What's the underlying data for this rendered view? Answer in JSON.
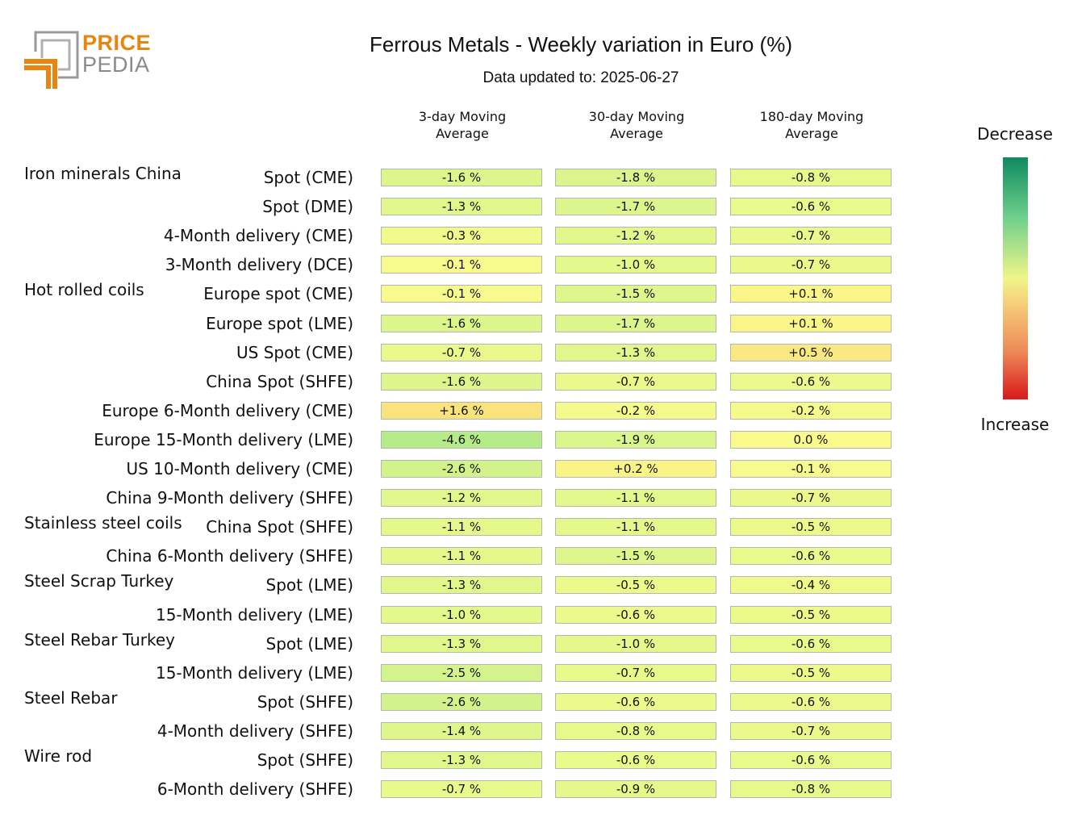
{
  "header": {
    "logo_price": "PRICE",
    "logo_pedia": "PEDIA",
    "logo_colors": {
      "orange": "#e8850f",
      "gray": "#8a8a8a",
      "text_orange": "#e8850f",
      "text_gray": "#8a8a8a"
    }
  },
  "chart_data": {
    "type": "table",
    "title": "Ferrous Metals - Weekly variation in Euro (%)",
    "subtitle": "Data updated to: 2025-06-27",
    "columns": [
      "3-day Moving\nAverage",
      "30-day Moving\nAverage",
      "180-day Moving\nAverage"
    ],
    "column_lines": [
      [
        "3-day Moving",
        "Average"
      ],
      [
        "30-day Moving",
        "Average"
      ],
      [
        "180-day Moving",
        "Average"
      ]
    ],
    "groups": [
      {
        "name": "Iron minerals China",
        "start_row": 0
      },
      {
        "name": "Hot rolled coils",
        "start_row": 4
      },
      {
        "name": "Stainless steel coils",
        "start_row": 12
      },
      {
        "name": "Steel Scrap Turkey",
        "start_row": 14
      },
      {
        "name": "Steel Rebar Turkey",
        "start_row": 16
      },
      {
        "name": "Steel Rebar",
        "start_row": 18
      },
      {
        "name": "Wire rod",
        "start_row": 20
      }
    ],
    "rows": [
      {
        "label": "Spot (CME)",
        "values": [
          -1.6,
          -1.8,
          -0.8
        ],
        "texts": [
          "-1.6 %",
          "-1.8 %",
          "-0.8 %"
        ]
      },
      {
        "label": "Spot (DME)",
        "values": [
          -1.3,
          -1.7,
          -0.6
        ],
        "texts": [
          "-1.3 %",
          "-1.7 %",
          "-0.6 %"
        ]
      },
      {
        "label": "4-Month delivery (CME)",
        "values": [
          -0.3,
          -1.2,
          -0.7
        ],
        "texts": [
          "-0.3 %",
          "-1.2 %",
          "-0.7 %"
        ]
      },
      {
        "label": "3-Month delivery (DCE)",
        "values": [
          -0.1,
          -1.0,
          -0.7
        ],
        "texts": [
          "-0.1 %",
          "-1.0 %",
          "-0.7 %"
        ]
      },
      {
        "label": "Europe spot (CME)",
        "values": [
          -0.1,
          -1.5,
          0.1
        ],
        "texts": [
          "-0.1 %",
          "-1.5 %",
          "+0.1 %"
        ]
      },
      {
        "label": "Europe spot (LME)",
        "values": [
          -1.6,
          -1.7,
          0.1
        ],
        "texts": [
          "-1.6 %",
          "-1.7 %",
          "+0.1 %"
        ]
      },
      {
        "label": "US Spot (CME)",
        "values": [
          -0.7,
          -1.3,
          0.5
        ],
        "texts": [
          "-0.7 %",
          "-1.3 %",
          "+0.5 %"
        ]
      },
      {
        "label": "China Spot (SHFE)",
        "values": [
          -1.6,
          -0.7,
          -0.6
        ],
        "texts": [
          "-1.6 %",
          "-0.7 %",
          "-0.6 %"
        ]
      },
      {
        "label": "Europe 6-Month delivery (CME)",
        "values": [
          1.6,
          -0.2,
          -0.2
        ],
        "texts": [
          "+1.6 %",
          "-0.2 %",
          "-0.2 %"
        ]
      },
      {
        "label": "Europe 15-Month delivery (LME)",
        "values": [
          -4.6,
          -1.9,
          0.0
        ],
        "texts": [
          "-4.6 %",
          "-1.9 %",
          "0.0 %"
        ]
      },
      {
        "label": "US 10-Month delivery (CME)",
        "values": [
          -2.6,
          0.2,
          -0.1
        ],
        "texts": [
          "-2.6 %",
          "+0.2 %",
          "-0.1 %"
        ]
      },
      {
        "label": "China 9-Month delivery (SHFE)",
        "values": [
          -1.2,
          -1.1,
          -0.7
        ],
        "texts": [
          "-1.2 %",
          "-1.1 %",
          "-0.7 %"
        ]
      },
      {
        "label": "China Spot (SHFE)",
        "values": [
          -1.1,
          -1.1,
          -0.5
        ],
        "texts": [
          "-1.1 %",
          "-1.1 %",
          "-0.5 %"
        ]
      },
      {
        "label": "China 6-Month delivery (SHFE)",
        "values": [
          -1.1,
          -1.5,
          -0.6
        ],
        "texts": [
          "-1.1 %",
          "-1.5 %",
          "-0.6 %"
        ]
      },
      {
        "label": "Spot (LME)",
        "values": [
          -1.3,
          -0.5,
          -0.4
        ],
        "texts": [
          "-1.3 %",
          "-0.5 %",
          "-0.4 %"
        ]
      },
      {
        "label": "15-Month delivery (LME)",
        "values": [
          -1.0,
          -0.6,
          -0.5
        ],
        "texts": [
          "-1.0 %",
          "-0.6 %",
          "-0.5 %"
        ]
      },
      {
        "label": "Spot (LME)",
        "values": [
          -1.3,
          -1.0,
          -0.6
        ],
        "texts": [
          "-1.3 %",
          "-1.0 %",
          "-0.6 %"
        ]
      },
      {
        "label": "15-Month delivery (LME)",
        "values": [
          -2.5,
          -0.7,
          -0.5
        ],
        "texts": [
          "-2.5 %",
          "-0.7 %",
          "-0.5 %"
        ]
      },
      {
        "label": "Spot (SHFE)",
        "values": [
          -2.6,
          -0.6,
          -0.6
        ],
        "texts": [
          "-2.6 %",
          "-0.6 %",
          "-0.6 %"
        ]
      },
      {
        "label": "4-Month delivery (SHFE)",
        "values": [
          -1.4,
          -0.8,
          -0.7
        ],
        "texts": [
          "-1.4 %",
          "-0.8 %",
          "-0.7 %"
        ]
      },
      {
        "label": "Spot (SHFE)",
        "values": [
          -1.3,
          -0.6,
          -0.6
        ],
        "texts": [
          "-1.3 %",
          "-0.6 %",
          "-0.6 %"
        ]
      },
      {
        "label": "6-Month delivery (SHFE)",
        "values": [
          -0.7,
          -0.9,
          -0.8
        ],
        "texts": [
          "-0.7 %",
          "-0.9 %",
          "-0.8 %"
        ]
      }
    ],
    "legend": {
      "top": "Decrease",
      "bottom": "Increase",
      "top_color": "#0f8a5f",
      "bottom_color": "#d7191c"
    }
  }
}
